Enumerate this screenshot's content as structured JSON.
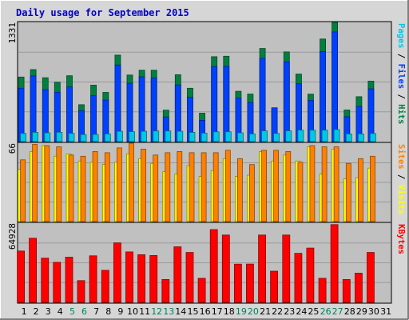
{
  "title": "Daily usage for September 2015",
  "chart_data": [
    {
      "type": "bar",
      "panel": "top",
      "categories": [
        "1",
        "2",
        "3",
        "4",
        "5",
        "6",
        "7",
        "8",
        "9",
        "10",
        "11",
        "12",
        "13",
        "14",
        "15",
        "16",
        "17",
        "18",
        "19",
        "20",
        "21",
        "22",
        "23",
        "24",
        "25",
        "26",
        "27",
        "28",
        "29",
        "30",
        "31"
      ],
      "ymax_label": "1331",
      "ylim": [
        0,
        1331
      ],
      "legend_position": "right",
      "legend": [
        {
          "label": "Pages",
          "color": "#00c8e6"
        },
        {
          "label": "Files",
          "color": "#0040ff"
        },
        {
          "label": "Hits",
          "color": "#008040"
        }
      ],
      "series": [
        {
          "name": "Hits",
          "color": "#008040",
          "values": [
            721,
            804,
            713,
            663,
            735,
            412,
            631,
            549,
            966,
            743,
            797,
            797,
            351,
            747,
            596,
            317,
            948,
            953,
            562,
            531,
            1040,
            354,
            1001,
            754,
            530,
            1145,
            1331,
            353,
            501,
            675,
            null
          ]
        },
        {
          "name": "Files",
          "color": "#0040ff",
          "values": [
            596,
            733,
            580,
            551,
            611,
            346,
            514,
            464,
            856,
            652,
            724,
            709,
            275,
            633,
            496,
            238,
            838,
            840,
            486,
            437,
            930,
            378,
            891,
            646,
            460,
            1006,
            1225,
            278,
            392,
            590,
            null
          ]
        },
        {
          "name": "Pages",
          "color": "#00c8e6",
          "values": [
            92,
            104,
            98,
            104,
            92,
            79,
            80,
            86,
            115,
            111,
            115,
            119,
            119,
            115,
            103,
            95,
            109,
            110,
            98,
            86,
            120,
            91,
            121,
            128,
            128,
            128,
            134,
            86,
            86,
            90,
            null
          ]
        }
      ]
    },
    {
      "type": "bar",
      "panel": "middle",
      "categories": [
        "1",
        "2",
        "3",
        "4",
        "5",
        "6",
        "7",
        "8",
        "9",
        "10",
        "11",
        "12",
        "13",
        "14",
        "15",
        "16",
        "17",
        "18",
        "19",
        "20",
        "21",
        "22",
        "23",
        "24",
        "25",
        "26",
        "27",
        "28",
        "29",
        "30",
        "31"
      ],
      "ymax_label": "66",
      "ylim": [
        0,
        66
      ],
      "legend_position": "right",
      "legend": [
        {
          "label": "Sites",
          "color": "#ff8000"
        },
        {
          "label": "Visits",
          "color": "#ffff00"
        }
      ],
      "series": [
        {
          "name": "Visits",
          "color": "#ffff00",
          "values": [
            44,
            59,
            64,
            55,
            57,
            51,
            50,
            48,
            50,
            57,
            53,
            49,
            42,
            40,
            47,
            38,
            43,
            53,
            38,
            39,
            59,
            51,
            56,
            51,
            63,
            40,
            61,
            36,
            37,
            45,
            null
          ]
        },
        {
          "name": "Sites",
          "color": "#ff8000",
          "values": [
            52,
            65,
            64,
            63,
            56,
            55,
            59,
            58,
            62,
            66,
            61,
            56,
            58,
            59,
            58,
            58,
            58,
            60,
            53,
            48,
            60,
            60,
            59,
            50,
            64,
            63,
            63,
            49,
            53,
            55,
            null
          ]
        }
      ]
    },
    {
      "type": "bar",
      "panel": "bottom",
      "categories": [
        "1",
        "2",
        "3",
        "4",
        "5",
        "6",
        "7",
        "8",
        "9",
        "10",
        "11",
        "12",
        "13",
        "14",
        "15",
        "16",
        "17",
        "18",
        "19",
        "20",
        "21",
        "22",
        "23",
        "24",
        "25",
        "26",
        "27",
        "28",
        "29",
        "30",
        "31"
      ],
      "ymax_label": "64928",
      "ylim": [
        0,
        64928
      ],
      "legend_position": "right",
      "legend": [
        {
          "label": "KBytes",
          "color": "#ff0000"
        }
      ],
      "series": [
        {
          "name": "KBytes",
          "color": "#ff0000",
          "values": [
            42087,
            52600,
            36296,
            32855,
            37126,
            17810,
            38178,
            26282,
            48800,
            41380,
            39100,
            38430,
            18730,
            45600,
            40930,
            19760,
            59660,
            55200,
            31320,
            31400,
            55210,
            25560,
            55210,
            40220,
            44500,
            19760,
            63770,
            18730,
            23910,
            40930,
            null
          ]
        }
      ]
    }
  ],
  "weekend_days": [
    "5",
    "6",
    "12",
    "13",
    "19",
    "20",
    "26",
    "27"
  ],
  "day_label_color_weekday": "#000000",
  "day_label_color_weekend": "#00805c"
}
